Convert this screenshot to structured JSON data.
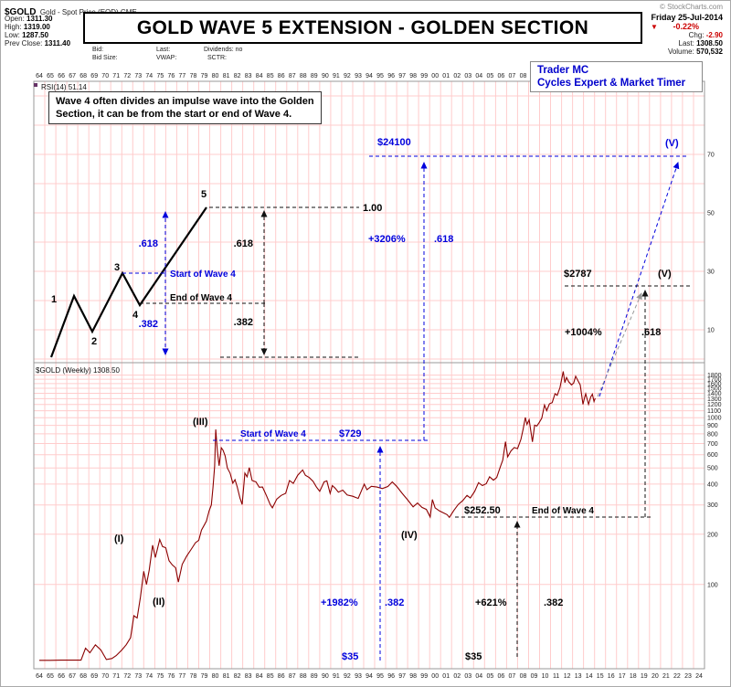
{
  "header": {
    "symbol": "$GOLD",
    "symbol_desc": "Gold - Spot Price (EOD) CME",
    "copyright": "© StockCharts.com",
    "title": "GOLD WAVE 5 EXTENSION - GOLDEN SECTION",
    "quote": {
      "open_label": "Open:",
      "open": "1311.30",
      "high_label": "High:",
      "high": "1319.00",
      "low_label": "Low:",
      "low": "1287.50",
      "prev_close_label": "Prev Close:",
      "prev_close": "1311.40",
      "bid_label": "Bid:",
      "last_label": "Last:",
      "dividends_label": "Dividends: no",
      "bid_size_label": "Bid Size:",
      "vwap_label": "VWAP:",
      "sctr_label": "SCTR:"
    },
    "right": {
      "date": "Friday 25-Jul-2014",
      "down_triangle": "▼",
      "pct_change": "-0.22%",
      "chg_label": "Chg:",
      "chg": "-2.90",
      "last_label": "Last:",
      "last": "1308.50",
      "volume_label": "Volume:",
      "volume": "570,532"
    }
  },
  "badge": {
    "line1": "Trader MC",
    "line2": "Cycles Expert & Market Timer"
  },
  "note_box": {
    "line1": "Wave 4 often divides an impulse wave into the Golden",
    "line2": "Section, it can be from the start or end of Wave 4."
  },
  "rsi_label": "RSI(14) 51.14",
  "price_label": "$GOLD (Weekly) 1308.50",
  "diagram": {
    "wave1": "1",
    "wave2": "2",
    "wave3": "3",
    "wave4": "4",
    "wave5": "5",
    "r618_blue": ".618",
    "r382_blue": ".382",
    "start_wave4": "Start of Wave 4",
    "end_wave4": "End of Wave 4",
    "one": "1.00",
    "r618": ".618",
    "r382": ".382"
  },
  "annotations": {
    "target_blue": "$24100",
    "pct_blue_upper": "+3206%",
    "r618_blue": ".618",
    "wave_v_blue": "(V)",
    "target_black": "$2787",
    "wave_v_black": "(V)",
    "pct_black_upper": "+1004%",
    "r618_black": ".618",
    "start_wave4": "Start of Wave 4",
    "price_729": "$729",
    "price_25250": "$252.50",
    "end_wave4": "End of Wave 4",
    "pct_blue_lower": "+1982%",
    "r382_blue": ".382",
    "price35_blue": "$35",
    "pct_black_lower": "+621%",
    "r382_black": ".382",
    "price35_black": "$35",
    "wave_I": "(I)",
    "wave_II": "(II)",
    "wave_III": "(III)",
    "wave_IV": "(IV)"
  },
  "chart_data": {
    "type": "line",
    "title": "GOLD WAVE 5 EXTENSION - GOLDEN SECTION",
    "symbol": "$GOLD (Weekly)",
    "last": 1308.5,
    "y_scale": "log",
    "rsi_value": 51.14,
    "rsi_ticks": [
      70,
      50,
      30,
      10
    ],
    "price_ticks": [
      1800,
      1700,
      1600,
      1500,
      1400,
      1300,
      1200,
      1100,
      1000,
      900,
      800,
      700,
      600,
      500,
      400,
      300,
      200,
      100
    ],
    "x_tick_labels": [
      "64",
      "65",
      "66",
      "67",
      "68",
      "69",
      "70",
      "71",
      "72",
      "73",
      "74",
      "75",
      "76",
      "77",
      "78",
      "79",
      "80",
      "81",
      "82",
      "83",
      "84",
      "85",
      "86",
      "87",
      "88",
      "89",
      "90",
      "91",
      "92",
      "93",
      "94",
      "95",
      "96",
      "97",
      "98",
      "99",
      "00",
      "01",
      "02",
      "03",
      "04",
      "05",
      "06",
      "07",
      "08",
      "09",
      "10",
      "11",
      "12",
      "13",
      "14",
      "15",
      "16",
      "17",
      "18",
      "19",
      "20",
      "21",
      "22",
      "23",
      "24"
    ],
    "key_levels": {
      "start_price": 35,
      "wave4_start": 729,
      "wave4_end": 252.5,
      "blue_target": 24100,
      "black_target": 2787
    },
    "series": [
      {
        "name": "$GOLD Weekly",
        "points": [
          [
            1964,
            35.1
          ],
          [
            1965,
            35.1
          ],
          [
            1966,
            35.2
          ],
          [
            1967,
            35.2
          ],
          [
            1967.8,
            35.2
          ],
          [
            1968.2,
            41.5
          ],
          [
            1968.6,
            39
          ],
          [
            1969.1,
            43.5
          ],
          [
            1969.6,
            40.5
          ],
          [
            1970.1,
            35.5
          ],
          [
            1970.6,
            36
          ],
          [
            1971,
            37.5
          ],
          [
            1971.5,
            40.5
          ],
          [
            1971.9,
            43.5
          ],
          [
            1972.3,
            48
          ],
          [
            1972.6,
            65
          ],
          [
            1972.9,
            63
          ],
          [
            1973.2,
            84
          ],
          [
            1973.5,
            120
          ],
          [
            1973.75,
            100
          ],
          [
            1974,
            122
          ],
          [
            1974.3,
            172
          ],
          [
            1974.55,
            145
          ],
          [
            1974.95,
            186
          ],
          [
            1975.2,
            169
          ],
          [
            1975.5,
            166
          ],
          [
            1975.8,
            139
          ],
          [
            1976.1,
            131
          ],
          [
            1976.4,
            126
          ],
          [
            1976.65,
            103.5
          ],
          [
            1977,
            132
          ],
          [
            1977.4,
            148
          ],
          [
            1977.8,
            162
          ],
          [
            1978.2,
            178
          ],
          [
            1978.5,
            184
          ],
          [
            1978.75,
            212
          ],
          [
            1979,
            227
          ],
          [
            1979.2,
            240
          ],
          [
            1979.45,
            277
          ],
          [
            1979.65,
            300
          ],
          [
            1979.8,
            382
          ],
          [
            1979.95,
            512
          ],
          [
            1980.05,
            850
          ],
          [
            1980.2,
            630
          ],
          [
            1980.35,
            515
          ],
          [
            1980.55,
            660
          ],
          [
            1980.7,
            640
          ],
          [
            1980.9,
            590
          ],
          [
            1981.1,
            500
          ],
          [
            1981.35,
            465
          ],
          [
            1981.6,
            405
          ],
          [
            1981.8,
            425
          ],
          [
            1982,
            385
          ],
          [
            1982.25,
            330
          ],
          [
            1982.45,
            302
          ],
          [
            1982.7,
            465
          ],
          [
            1982.9,
            442
          ],
          [
            1983.1,
            502
          ],
          [
            1983.35,
            420
          ],
          [
            1983.7,
            412
          ],
          [
            1984,
            383
          ],
          [
            1984.3,
            384
          ],
          [
            1984.65,
            342
          ],
          [
            1985,
            302
          ],
          [
            1985.2,
            288
          ],
          [
            1985.6,
            325
          ],
          [
            1986,
            342
          ],
          [
            1986.4,
            352
          ],
          [
            1986.75,
            420
          ],
          [
            1987.1,
            404
          ],
          [
            1987.5,
            452
          ],
          [
            1987.95,
            486
          ],
          [
            1988.2,
            452
          ],
          [
            1988.55,
            438
          ],
          [
            1988.9,
            415
          ],
          [
            1989.2,
            385
          ],
          [
            1989.5,
            362
          ],
          [
            1989.9,
            412
          ],
          [
            1990.15,
            418
          ],
          [
            1990.45,
            352
          ],
          [
            1990.65,
            392
          ],
          [
            1990.9,
            378
          ],
          [
            1991.2,
            358
          ],
          [
            1991.6,
            368
          ],
          [
            1992,
            344
          ],
          [
            1992.5,
            338
          ],
          [
            1993,
            328
          ],
          [
            1993.55,
            400
          ],
          [
            1993.8,
            370
          ],
          [
            1994.2,
            388
          ],
          [
            1994.7,
            384
          ],
          [
            1995.2,
            376
          ],
          [
            1995.7,
            387
          ],
          [
            1996.1,
            412
          ],
          [
            1996.5,
            388
          ],
          [
            1997,
            352
          ],
          [
            1997.5,
            322
          ],
          [
            1998,
            292
          ],
          [
            1998.4,
            308
          ],
          [
            1998.8,
            290
          ],
          [
            1999.2,
            282
          ],
          [
            1999.55,
            254
          ],
          [
            1999.75,
            323
          ],
          [
            2000,
            288
          ],
          [
            2000.4,
            276
          ],
          [
            2000.8,
            268
          ],
          [
            2001.1,
            262
          ],
          [
            2001.3,
            252.5
          ],
          [
            2001.7,
            278
          ],
          [
            2002.1,
            302
          ],
          [
            2002.5,
            318
          ],
          [
            2002.9,
            342
          ],
          [
            2003.2,
            330
          ],
          [
            2003.6,
            362
          ],
          [
            2003.95,
            408
          ],
          [
            2004.3,
            392
          ],
          [
            2004.65,
            402
          ],
          [
            2004.95,
            442
          ],
          [
            2005.3,
            422
          ],
          [
            2005.6,
            438
          ],
          [
            2005.95,
            512
          ],
          [
            2006.15,
            556
          ],
          [
            2006.4,
            718
          ],
          [
            2006.6,
            582
          ],
          [
            2006.9,
            632
          ],
          [
            2007.2,
            662
          ],
          [
            2007.5,
            652
          ],
          [
            2007.8,
            742
          ],
          [
            2008,
            852
          ],
          [
            2008.2,
            1002
          ],
          [
            2008.35,
            912
          ],
          [
            2008.55,
            972
          ],
          [
            2008.85,
            716
          ],
          [
            2009.05,
            902
          ],
          [
            2009.25,
            892
          ],
          [
            2009.45,
            932
          ],
          [
            2009.7,
            992
          ],
          [
            2009.95,
            1192
          ],
          [
            2010.15,
            1102
          ],
          [
            2010.4,
            1212
          ],
          [
            2010.65,
            1232
          ],
          [
            2010.9,
            1392
          ],
          [
            2011.1,
            1362
          ],
          [
            2011.35,
            1512
          ],
          [
            2011.65,
            1892
          ],
          [
            2011.8,
            1622
          ],
          [
            2011.95,
            1742
          ],
          [
            2012.15,
            1642
          ],
          [
            2012.4,
            1572
          ],
          [
            2012.6,
            1612
          ],
          [
            2012.78,
            1772
          ],
          [
            2013,
            1662
          ],
          [
            2013.2,
            1572
          ],
          [
            2013.45,
            1202
          ],
          [
            2013.6,
            1322
          ],
          [
            2013.7,
            1392
          ],
          [
            2013.95,
            1202
          ],
          [
            2014.15,
            1332
          ],
          [
            2014.3,
            1382
          ],
          [
            2014.45,
            1252
          ],
          [
            2014.56,
            1308.5
          ]
        ]
      }
    ]
  }
}
